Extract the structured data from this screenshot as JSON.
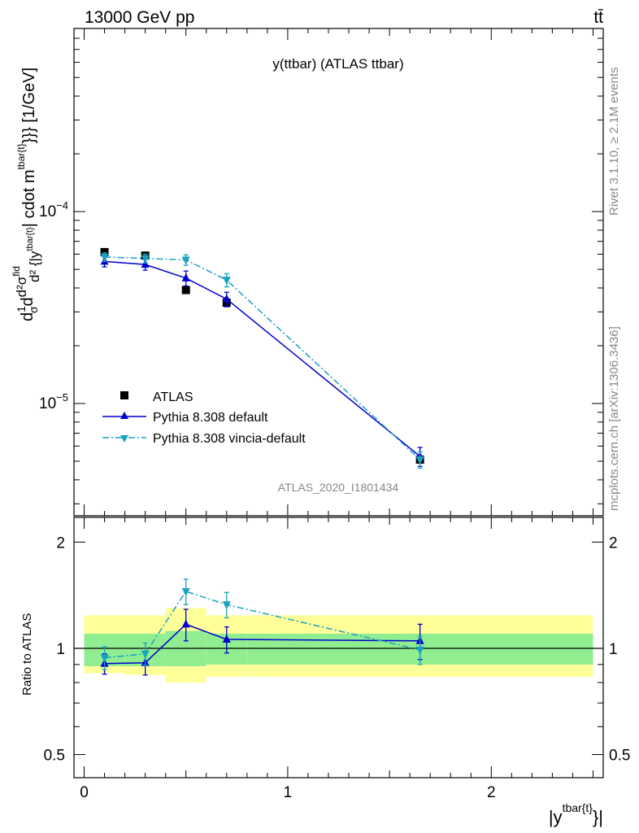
{
  "header": {
    "energy_label": "13000 GeV pp",
    "process_label": "tt̄"
  },
  "side_labels": {
    "rivet": "Rivet 3.1.10, ≥ 2.1M events",
    "mcplots": "mcplots.cern.ch [arXiv:1306.3436]"
  },
  "chart_data": [
    {
      "type": "line",
      "title": "y(ttbar) (ATLAS ttbar)",
      "analysis_tag": "ATLAS_2020_I1801434",
      "ylabel_parts": [
        "d",
        "1",
        "σ",
        "d",
        "d²σ",
        "fid",
        "d² {|y",
        "tbar{t}",
        "| cdot m",
        "tbar{t}",
        "}}} [1/GeV]"
      ],
      "yscale": "log",
      "ylim": [
        2.6e-06,
        0.0009
      ],
      "xlim": [
        -0.05,
        2.55
      ],
      "y_tick_labels": [
        {
          "value": 0.0001,
          "base": "10",
          "exp": "−4"
        },
        {
          "value": 1e-05,
          "base": "10",
          "exp": "−5"
        }
      ],
      "grid": false,
      "legend_placement": "lower-left",
      "series": [
        {
          "name": "ATLAS",
          "style": "data",
          "color": "#000000",
          "x": [
            0.1,
            0.3,
            0.5,
            0.7,
            1.65
          ],
          "y": [
            6.15e-05,
            5.9e-05,
            3.9e-05,
            3.35e-05,
            5.1e-06
          ],
          "yerr": [
            0.0,
            0.0,
            0.0,
            1.6e-06,
            2e-07
          ]
        },
        {
          "name": "Pythia 8.308 default",
          "style": "solid",
          "marker": "triangle-up",
          "color": "#0000cc",
          "x": [
            0.1,
            0.3,
            0.5,
            0.7,
            1.65
          ],
          "y": [
            5.5e-05,
            5.3e-05,
            4.5e-05,
            3.5e-05,
            5.3e-06
          ],
          "yerr": [
            3.5e-06,
            3.5e-06,
            4e-06,
            3e-06,
            6e-07
          ]
        },
        {
          "name": "Pythia 8.308 vincia-default",
          "style": "dashdot",
          "marker": "triangle-down",
          "color": "#1ba1c1",
          "x": [
            0.1,
            0.3,
            0.5,
            0.7,
            1.65
          ],
          "y": [
            5.8e-05,
            5.7e-05,
            5.6e-05,
            4.4e-05,
            5.1e-06
          ],
          "yerr": [
            3e-06,
            3e-06,
            3.5e-06,
            3.5e-06,
            5e-07
          ]
        }
      ]
    },
    {
      "type": "line",
      "ylabel": "Ratio to ATLAS",
      "xlabel_parts": [
        "|y",
        "tbar{t}",
        "}|"
      ],
      "yscale": "log",
      "ylim": [
        0.43,
        2.35
      ],
      "xlim": [
        -0.05,
        2.55
      ],
      "y_ticks": [
        0.5,
        1,
        2
      ],
      "y_tick_labels": [
        "0.5",
        "1",
        "2"
      ],
      "x_ticks": [
        0,
        1,
        2
      ],
      "x_tick_labels": [
        "0",
        "1",
        "2"
      ],
      "reference_line": 1,
      "bands": {
        "bins": [
          [
            0.0,
            0.2
          ],
          [
            0.2,
            0.4
          ],
          [
            0.4,
            0.6
          ],
          [
            0.6,
            0.8
          ],
          [
            0.8,
            2.5
          ]
        ],
        "inner_band": {
          "color": "#90ee90",
          "lower": [
            0.89,
            0.89,
            0.89,
            0.9,
            0.9
          ],
          "upper": [
            1.1,
            1.1,
            1.12,
            1.1,
            1.1
          ]
        },
        "outer_band": {
          "color": "#ffff99",
          "lower": [
            0.85,
            0.84,
            0.8,
            0.83,
            0.83
          ],
          "upper": [
            1.24,
            1.24,
            1.3,
            1.24,
            1.24
          ]
        }
      },
      "series": [
        {
          "name": "Pythia 8.308 default",
          "color": "#0000cc",
          "style": "solid",
          "marker": "triangle-up",
          "x": [
            0.1,
            0.3,
            0.5,
            0.7,
            1.65
          ],
          "y": [
            0.905,
            0.91,
            1.17,
            1.06,
            1.05
          ],
          "yerr": [
            0.06,
            0.07,
            0.12,
            0.09,
            0.12
          ]
        },
        {
          "name": "Pythia 8.308 vincia-default",
          "color": "#1ba1c1",
          "style": "dashdot",
          "marker": "triangle-down",
          "x": [
            0.1,
            0.3,
            0.5,
            0.7,
            1.65
          ],
          "y": [
            0.94,
            0.965,
            1.45,
            1.33,
            0.99
          ],
          "yerr": [
            0.07,
            0.07,
            0.12,
            0.11,
            0.09
          ]
        }
      ]
    }
  ]
}
